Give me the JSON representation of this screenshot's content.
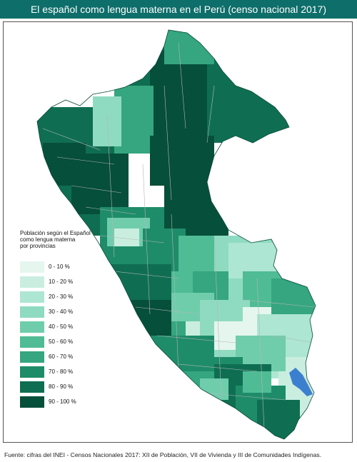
{
  "title": "El español como lengua materna en el Perú (censo nacional 2017)",
  "legend": {
    "title_lines": [
      "Población según el Español",
      "como lengua materna",
      "por provincias"
    ],
    "items": [
      {
        "label": "0 - 10 %",
        "color": "#e5f6ef"
      },
      {
        "label": "10 - 20 %",
        "color": "#c9eee0"
      },
      {
        "label": "20 - 30 %",
        "color": "#ade6d2"
      },
      {
        "label": "30 - 40 %",
        "color": "#8fdbc1"
      },
      {
        "label": "40 - 50 %",
        "color": "#6fcdac"
      },
      {
        "label": "50 - 60 %",
        "color": "#4fbc95"
      },
      {
        "label": "60 - 70 %",
        "color": "#35a67f"
      },
      {
        "label": "70 - 80 %",
        "color": "#1f8c69"
      },
      {
        "label": "80 - 90 %",
        "color": "#0f6e52"
      },
      {
        "label": "90 - 100 %",
        "color": "#064f3a"
      }
    ]
  },
  "lake_color": "#3d7fcf",
  "border_color": "#b5b5b5",
  "footer": "Fuente: cifras del INEI - Censos Nacionales 2017: XII de Población, VII de Vivienda y III de Comunidades Indígenas."
}
